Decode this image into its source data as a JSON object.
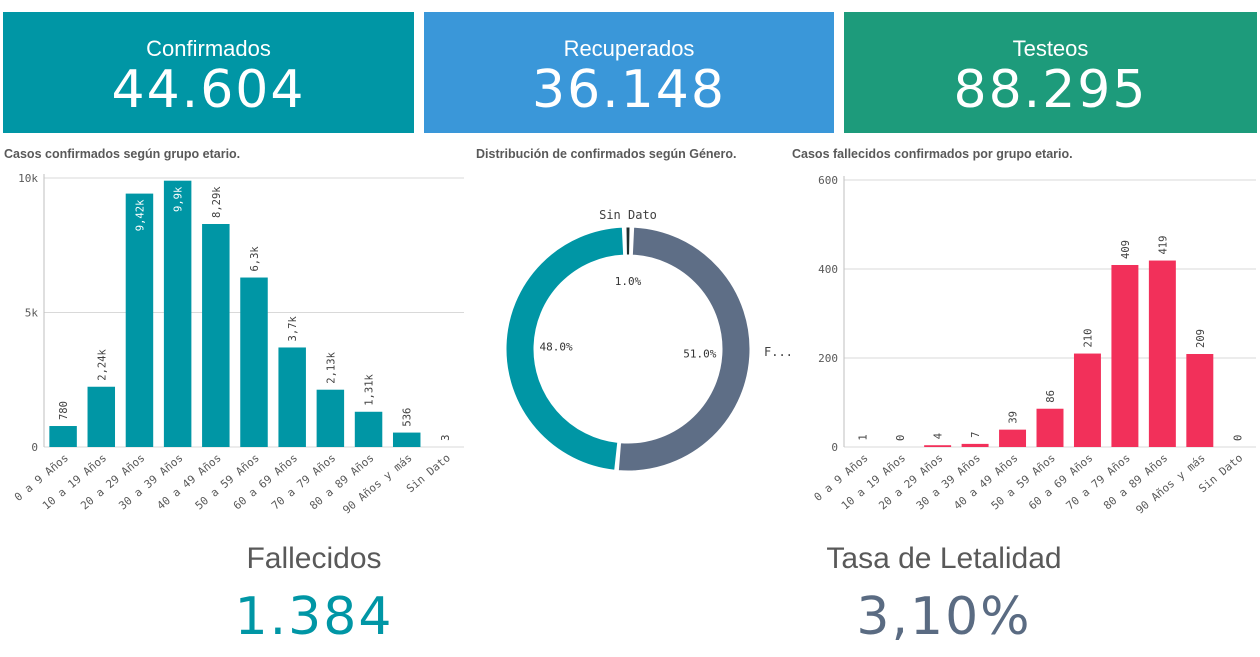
{
  "kpis": {
    "confirmados": {
      "label": "Confirmados",
      "value": "44.604",
      "color": "#0096a5"
    },
    "recuperados": {
      "label": "Recuperados",
      "value": "36.148",
      "color": "#3a97d9"
    },
    "testeos": {
      "label": "Testeos",
      "value": "88.295",
      "color": "#1d9b7b"
    }
  },
  "bottom": {
    "fallecidos": {
      "label": "Fallecidos",
      "value": "1.384",
      "color": "#0096a5"
    },
    "letalidad": {
      "label": "Tasa de Letalidad",
      "value": "3,10%",
      "color": "#5a6b82"
    }
  },
  "chart_data": [
    {
      "type": "bar",
      "title": "Casos confirmados según grupo etario.",
      "categories": [
        "0 a 9 Años",
        "10 a 19 Años",
        "20 a 29 Años",
        "30 a 39 Años",
        "40 a 49 Años",
        "50 a 59 Años",
        "60 a 69 Años",
        "70 a 79 Años",
        "80 a 89 Años",
        "90 Años y más",
        "Sin Dato"
      ],
      "values": [
        780,
        2240,
        9420,
        9900,
        8290,
        6300,
        3700,
        2130,
        1310,
        536,
        3
      ],
      "data_labels": [
        "780",
        "2,24k",
        "9,42k",
        "9,9k",
        "8,29k",
        "6,3k",
        "3,7k",
        "2,13k",
        "1,31k",
        "536",
        "3"
      ],
      "yticks": [
        "0",
        "5k",
        "10k"
      ],
      "ytick_values": [
        0,
        5000,
        10000
      ],
      "ylim": [
        0,
        10000
      ],
      "color": "#0096a5",
      "grid": true
    },
    {
      "type": "pie",
      "title": "Distribución de confirmados según Género.",
      "slices": [
        {
          "name": "",
          "value": 48.0,
          "label": "48.0%",
          "color": "#0096a5"
        },
        {
          "name": "F...",
          "value": 51.0,
          "label": "51.0%",
          "color": "#5e6e86"
        },
        {
          "name": "Sin Dato",
          "value": 1.0,
          "label": "1.0%",
          "color": "#1f2d2d"
        }
      ]
    },
    {
      "type": "bar",
      "title": "Casos fallecidos confirmados por grupo etario.",
      "categories": [
        "0 a 9 Años",
        "10 a 19 Años",
        "20 a 29 Años",
        "30 a 39 Años",
        "40 a 49 Años",
        "50 a 59 Años",
        "60 a 69 Años",
        "70 a 79 Años",
        "80 a 89 Años",
        "90 Años y más",
        "Sin Dato"
      ],
      "values": [
        1,
        0,
        4,
        7,
        39,
        86,
        210,
        409,
        419,
        209,
        0
      ],
      "data_labels": [
        "1",
        "0",
        "4",
        "7",
        "39",
        "86",
        "210",
        "409",
        "419",
        "209",
        "0"
      ],
      "yticks": [
        "0",
        "200",
        "400",
        "600"
      ],
      "ytick_values": [
        0,
        200,
        400,
        600
      ],
      "ylim": [
        0,
        600
      ],
      "color": "#f2305a",
      "grid": true
    }
  ]
}
